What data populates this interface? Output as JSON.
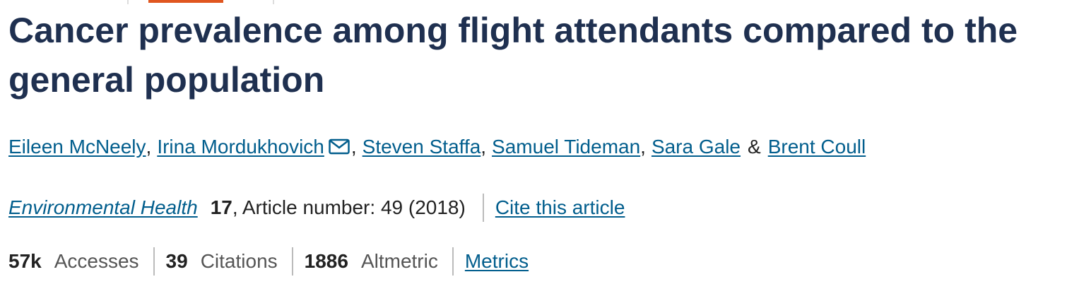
{
  "title": "Cancer prevalence among flight attendants compared to the general population",
  "authors": [
    "Eileen McNeely",
    "Irina Mordukhovich",
    "Steven Staffa",
    "Samuel Tideman",
    "Sara Gale",
    "Brent Coull"
  ],
  "author_separator": ",",
  "last_author_conjunction": "&",
  "journal": {
    "name": "Environmental Health",
    "volume": "17",
    "details": ", Article number: 49 (2018)",
    "cite_link": "Cite this article"
  },
  "metrics": [
    {
      "value": "57k",
      "label": "Accesses"
    },
    {
      "value": "39",
      "label": "Citations"
    },
    {
      "value": "1886",
      "label": "Altmetric"
    }
  ],
  "metrics_link": "Metrics"
}
